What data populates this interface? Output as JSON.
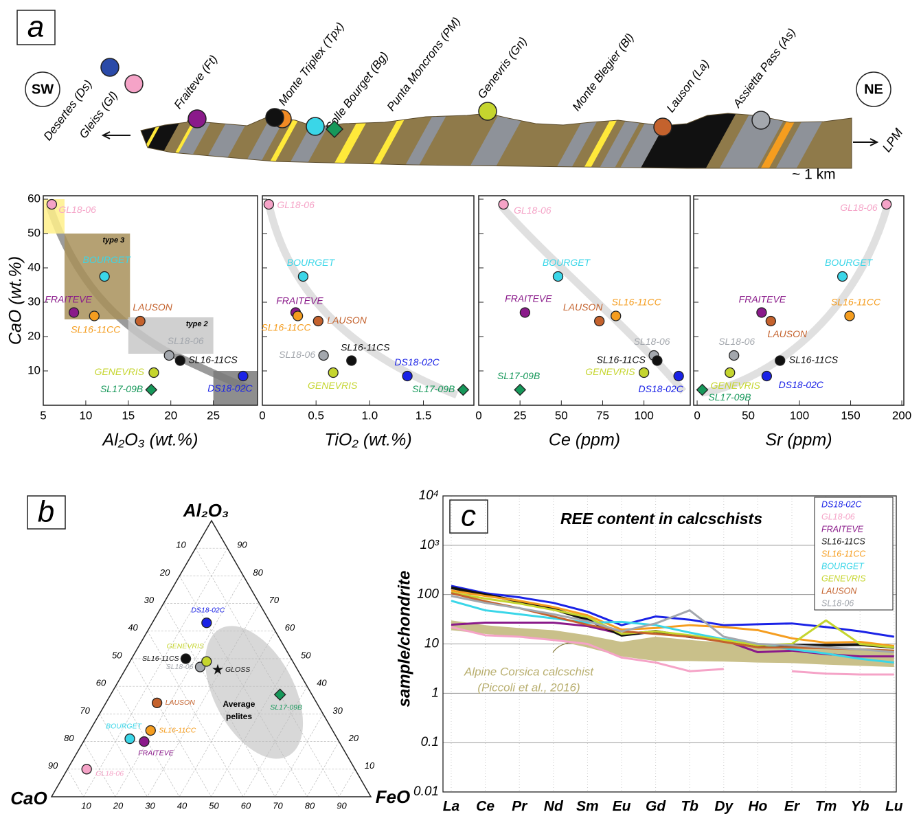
{
  "panels": [
    "a",
    "b",
    "c"
  ],
  "section": {
    "left": "SW",
    "right": "NE",
    "arrow_label": "LPM",
    "scale": "~ 1 km",
    "sites": [
      {
        "name": "Desertes (Ds)",
        "markers": [
          {
            "color": "#2a4aa8",
            "shape": "circle"
          }
        ]
      },
      {
        "name": "Gleiss (Gl)",
        "markers": [
          {
            "color": "#f5a3c7",
            "shape": "circle"
          }
        ]
      },
      {
        "name": "Fraiteve (Ft)",
        "markers": [
          {
            "color": "#8a1a8a",
            "shape": "circle"
          }
        ]
      },
      {
        "name": "Monte Triplex (Tpx)",
        "markers": [
          {
            "color": "#f08a24",
            "shape": "circle"
          },
          {
            "color": "#111111",
            "shape": "circle"
          }
        ]
      },
      {
        "name": "Colle Bourget (Bg)",
        "markers": [
          {
            "color": "#3ad6e8",
            "shape": "circle"
          },
          {
            "color": "#16985a",
            "shape": "diamond"
          }
        ]
      },
      {
        "name": "Punta Moncrons (PM)"
      },
      {
        "name": "Genevris (Gn)",
        "markers": [
          {
            "color": "#c5d52e",
            "shape": "circle"
          }
        ]
      },
      {
        "name": "Monte Blegier (Bl)"
      },
      {
        "name": "Lauson (La)",
        "markers": [
          {
            "color": "#c4622d",
            "shape": "circle"
          }
        ]
      },
      {
        "name": "Assietta Pass (As)",
        "markers": [
          {
            "color": "#a3a7ad",
            "shape": "circle"
          }
        ]
      }
    ]
  },
  "chart_data": [
    {
      "type": "scatter",
      "xlabel": "Al₂O₃ (wt.%)",
      "ylabel": "CaO (wt.%)",
      "xlim": [
        5,
        30.2
      ],
      "xticks": [
        5,
        10,
        15,
        20,
        25
      ],
      "ylim": [
        0,
        61
      ],
      "yticks": [
        10,
        20,
        30,
        40,
        50,
        60
      ],
      "regions": [
        {
          "xlim": [
            5,
            7.5
          ],
          "ylim": [
            50,
            60
          ],
          "color": "#fff08a"
        },
        {
          "label": "type 3",
          "xlim": [
            7.5,
            15.2
          ],
          "ylim": [
            25,
            50
          ],
          "color": "#a8915a"
        },
        {
          "label": "type 2",
          "xlim": [
            15,
            25
          ],
          "ylim": [
            15,
            25.6
          ],
          "color": "#c8c8c8"
        },
        {
          "xlim": [
            25,
            30.2
          ],
          "ylim": [
            0,
            10
          ],
          "color": "#7a7a7a"
        }
      ],
      "series": [
        {
          "name": "GL18-06",
          "color": "#f5a3c7",
          "x": [
            6.0
          ],
          "values": [
            58.5
          ]
        },
        {
          "name": "BOURGET",
          "color": "#3ad6e8",
          "x": [
            12.2
          ],
          "values": [
            37.5
          ]
        },
        {
          "name": "FRAITEVE",
          "color": "#8a1a8a",
          "x": [
            8.6
          ],
          "values": [
            27
          ]
        },
        {
          "name": "SL16-11CC",
          "color": "#f59d1f",
          "x": [
            11.0
          ],
          "values": [
            26
          ]
        },
        {
          "name": "LAUSON",
          "color": "#c4622d",
          "x": [
            16.4
          ],
          "values": [
            24.5
          ]
        },
        {
          "name": "SL18-06",
          "color": "#a3a7ad",
          "x": [
            19.8
          ],
          "values": [
            14.5
          ]
        },
        {
          "name": "SL16-11CS",
          "color": "#111111",
          "x": [
            21.1
          ],
          "values": [
            13
          ]
        },
        {
          "name": "GENEVRIS",
          "color": "#c5d52e",
          "x": [
            18.0
          ],
          "values": [
            9.5
          ]
        },
        {
          "name": "SL17-09B",
          "color": "#16985a",
          "marker": "diamond",
          "x": [
            17.7
          ],
          "values": [
            4.5
          ]
        },
        {
          "name": "DS18-02C",
          "color": "#1a22e6",
          "x": [
            28.5
          ],
          "values": [
            8.5
          ]
        }
      ]
    },
    {
      "type": "scatter",
      "xlabel": "TiO₂ (wt.%)",
      "xlim": [
        0,
        1.97
      ],
      "xticks": [
        0,
        0.5,
        {
          "value": 1,
          "label": "1.0"
        },
        1.5
      ],
      "ylim": [
        0,
        61
      ],
      "series": [
        {
          "name": "GL18-06",
          "color": "#f5a3c7",
          "x": [
            0.06
          ],
          "values": [
            58.5
          ]
        },
        {
          "name": "BOURGET",
          "color": "#3ad6e8",
          "x": [
            0.38
          ],
          "values": [
            37.5
          ]
        },
        {
          "name": "FRAITEVE",
          "color": "#8a1a8a",
          "x": [
            0.31
          ],
          "values": [
            27
          ]
        },
        {
          "name": "SL16-11CC",
          "color": "#f59d1f",
          "x": [
            0.33
          ],
          "values": [
            26
          ]
        },
        {
          "name": "LAUSON",
          "color": "#c4622d",
          "x": [
            0.52
          ],
          "values": [
            24.5
          ]
        },
        {
          "name": "SL18-06",
          "color": "#a3a7ad",
          "x": [
            0.57
          ],
          "values": [
            14.5
          ]
        },
        {
          "name": "SL16-11CS",
          "color": "#111111",
          "x": [
            0.83
          ],
          "values": [
            13
          ]
        },
        {
          "name": "GENEVRIS",
          "color": "#c5d52e",
          "x": [
            0.66
          ],
          "values": [
            9.5
          ]
        },
        {
          "name": "SL17-09B",
          "color": "#16985a",
          "marker": "diamond",
          "x": [
            1.87
          ],
          "values": [
            4.5
          ]
        },
        {
          "name": "DS18-02C",
          "color": "#1a22e6",
          "x": [
            1.35
          ],
          "values": [
            8.5
          ]
        }
      ]
    },
    {
      "type": "scatter",
      "xlabel": "Ce (ppm)",
      "xlim": [
        0,
        128
      ],
      "xticks": [
        0,
        25,
        50,
        75,
        100
      ],
      "ylim": [
        0,
        61
      ],
      "series": [
        {
          "name": "GL18-06",
          "color": "#f5a3c7",
          "x": [
            15
          ],
          "values": [
            58.5
          ]
        },
        {
          "name": "BOURGET",
          "color": "#3ad6e8",
          "x": [
            48
          ],
          "values": [
            37.5
          ]
        },
        {
          "name": "FRAITEVE",
          "color": "#8a1a8a",
          "x": [
            28
          ],
          "values": [
            27
          ]
        },
        {
          "name": "SL16-11CC",
          "color": "#f59d1f",
          "x": [
            83
          ],
          "values": [
            26
          ]
        },
        {
          "name": "LAUSON",
          "color": "#c4622d",
          "x": [
            73
          ],
          "values": [
            24.5
          ]
        },
        {
          "name": "SL18-06",
          "color": "#a3a7ad",
          "x": [
            106
          ],
          "values": [
            14.5
          ]
        },
        {
          "name": "SL16-11CS",
          "color": "#111111",
          "x": [
            108
          ],
          "values": [
            13
          ]
        },
        {
          "name": "GENEVRIS",
          "color": "#c5d52e",
          "x": [
            100
          ],
          "values": [
            9.5
          ]
        },
        {
          "name": "SL17-09B",
          "color": "#16985a",
          "marker": "diamond",
          "x": [
            25
          ],
          "values": [
            4.5
          ]
        },
        {
          "name": "DS18-02C",
          "color": "#1a22e6",
          "x": [
            121
          ],
          "values": [
            8.5
          ]
        }
      ]
    },
    {
      "type": "scatter",
      "xlabel": "Sr (ppm)",
      "xlim": [
        -3.4,
        202
      ],
      "xticks": [
        0,
        50,
        100,
        150,
        200
      ],
      "ylim": [
        0,
        61
      ],
      "series": [
        {
          "name": "GL18-06",
          "color": "#f5a3c7",
          "x": [
            185
          ],
          "values": [
            58.5
          ]
        },
        {
          "name": "BOURGET",
          "color": "#3ad6e8",
          "x": [
            142
          ],
          "values": [
            37.5
          ]
        },
        {
          "name": "FRAITEVE",
          "color": "#8a1a8a",
          "x": [
            63
          ],
          "values": [
            27
          ]
        },
        {
          "name": "SL16-11CC",
          "color": "#f59d1f",
          "x": [
            149
          ],
          "values": [
            26
          ]
        },
        {
          "name": "LAUSON",
          "color": "#c4622d",
          "x": [
            72
          ],
          "values": [
            24.5
          ]
        },
        {
          "name": "SL18-06",
          "color": "#a3a7ad",
          "x": [
            36
          ],
          "values": [
            14.5
          ]
        },
        {
          "name": "SL16-11CS",
          "color": "#111111",
          "x": [
            81
          ],
          "values": [
            13
          ]
        },
        {
          "name": "GENEVRIS",
          "color": "#c5d52e",
          "x": [
            32
          ],
          "values": [
            9.5
          ]
        },
        {
          "name": "SL17-09B",
          "color": "#16985a",
          "marker": "diamond",
          "x": [
            5
          ],
          "values": [
            4.5
          ]
        },
        {
          "name": "DS18-02C",
          "color": "#1a22e6",
          "x": [
            68
          ],
          "values": [
            8.5
          ]
        }
      ]
    },
    {
      "type": "ternary",
      "axes": [
        "Al₂O₃",
        "CaO",
        "FeO"
      ],
      "ticks": [
        10,
        20,
        30,
        40,
        50,
        60,
        70,
        80,
        90
      ],
      "annotations": [
        "Average",
        "pelites"
      ],
      "series": [
        {
          "name": "GL18-06",
          "color": "#f5a3c7",
          "values": [
            10,
            84,
            6
          ]
        },
        {
          "name": "BOURGET",
          "color": "#3ad6e8",
          "values": [
            21,
            65,
            14
          ]
        },
        {
          "name": "FRAITEVE",
          "color": "#8a1a8a",
          "values": [
            20,
            61,
            19
          ]
        },
        {
          "name": "SL16-11CC",
          "color": "#f59d1f",
          "values": [
            24,
            57,
            19
          ]
        },
        {
          "name": "LAUSON",
          "color": "#c4622d",
          "values": [
            34,
            50,
            16
          ]
        },
        {
          "name": "SL18-06",
          "color": "#a3a7ad",
          "values": [
            47,
            30,
            23
          ]
        },
        {
          "name": "SL16-11CS",
          "color": "#111111",
          "values": [
            50,
            33,
            17
          ]
        },
        {
          "name": "GENEVRIS",
          "color": "#c5d52e",
          "values": [
            49,
            27,
            24
          ]
        },
        {
          "name": "GLOSS",
          "color": "#111111",
          "marker": "star",
          "values": [
            46,
            25,
            29
          ]
        },
        {
          "name": "DS18-02C",
          "color": "#1a22e6",
          "values": [
            63,
            20,
            17
          ]
        },
        {
          "name": "SL17-09B",
          "color": "#16985a",
          "marker": "diamond",
          "values": [
            37,
            10,
            53
          ]
        }
      ]
    },
    {
      "type": "line",
      "title": "REE content in calcschists",
      "ylabel": "sample/chondrite",
      "log": true,
      "grid": true,
      "legend": "upper right",
      "categories": [
        "La",
        "Ce",
        "Pr",
        "Nd",
        "Sm",
        "Eu",
        "Gd",
        "Tb",
        "Dy",
        "Ho",
        "Er",
        "Tm",
        "Yb",
        "Lu"
      ],
      "ylim": [
        0.01,
        10000
      ],
      "yticks": [
        0.01,
        0.1,
        1,
        10,
        100,
        {
          "value": 1000,
          "label": "10³"
        },
        {
          "value": 10000,
          "label": "10⁴"
        }
      ],
      "band": {
        "color": "#c9c08a",
        "upper": [
          30,
          24,
          21,
          19,
          15,
          11,
          14,
          12,
          10.7,
          10,
          9.4,
          8.8,
          8.2,
          7.7
        ],
        "lower": [
          19,
          16,
          14,
          12,
          8.5,
          5.6,
          4.5,
          4.5,
          4.4,
          4.2,
          4.1,
          3.8,
          3.6,
          3.4
        ]
      },
      "annotations": [
        "Alpine Corsica calcschist",
        "(Piccoli et al., 2016)"
      ],
      "series": [
        {
          "name": "DS18-02C",
          "color": "#1a22e6",
          "values": [
            150,
            107,
            88,
            68,
            45,
            24,
            36,
            31,
            24,
            25,
            26,
            22,
            18,
            14
          ]
        },
        {
          "name": "GL18-06",
          "color": "#f5a3c7",
          "values": [
            22,
            15,
            14,
            12,
            10,
            5.3,
            4.2,
            2.8,
            3.1,
            null,
            2.8,
            2.5,
            2.4,
            2.4
          ]
        },
        {
          "name": "FRAITEVE",
          "color": "#8a1a8a",
          "values": [
            24.5,
            27,
            27,
            27,
            23,
            16,
            18,
            14,
            12,
            6.8,
            7.3,
            6.2,
            5.6,
            5.6
          ]
        },
        {
          "name": "SL16-11CS",
          "color": "#111111",
          "values": [
            138,
            100,
            73,
            51,
            31,
            15,
            18,
            14,
            12,
            9.4,
            9.4,
            9.4,
            9.7,
            8.5
          ]
        },
        {
          "name": "SL16-11CC",
          "color": "#f59d1f",
          "values": [
            121,
            94,
            75,
            56,
            38,
            19.5,
            21,
            24,
            22,
            19,
            13,
            10.6,
            11,
            9.1
          ]
        },
        {
          "name": "BOURGET",
          "color": "#3ad6e8",
          "values": [
            75,
            48,
            40,
            33,
            27,
            28,
            24,
            17,
            12.5,
            10,
            7.8,
            6.4,
            5,
            4.2
          ]
        },
        {
          "name": "GENEVRIS",
          "color": "#c5d52e",
          "values": [
            110,
            83,
            66,
            49,
            35,
            16,
            18,
            15,
            12,
            9.4,
            10,
            30,
            10,
            8.5
          ]
        },
        {
          "name": "LAUSON",
          "color": "#c4622d",
          "values": [
            107,
            73,
            53,
            36,
            24.5,
            18,
            16,
            14,
            11,
            8.5,
            8.5,
            8.2,
            7.8,
            7.3
          ]
        },
        {
          "name": "SL18-06",
          "color": "#a3a7ad",
          "values": [
            94,
            68,
            53,
            40,
            29,
            18,
            26,
            48,
            14,
            10,
            9.4,
            8.5,
            7.8,
            6.8
          ]
        }
      ]
    }
  ]
}
